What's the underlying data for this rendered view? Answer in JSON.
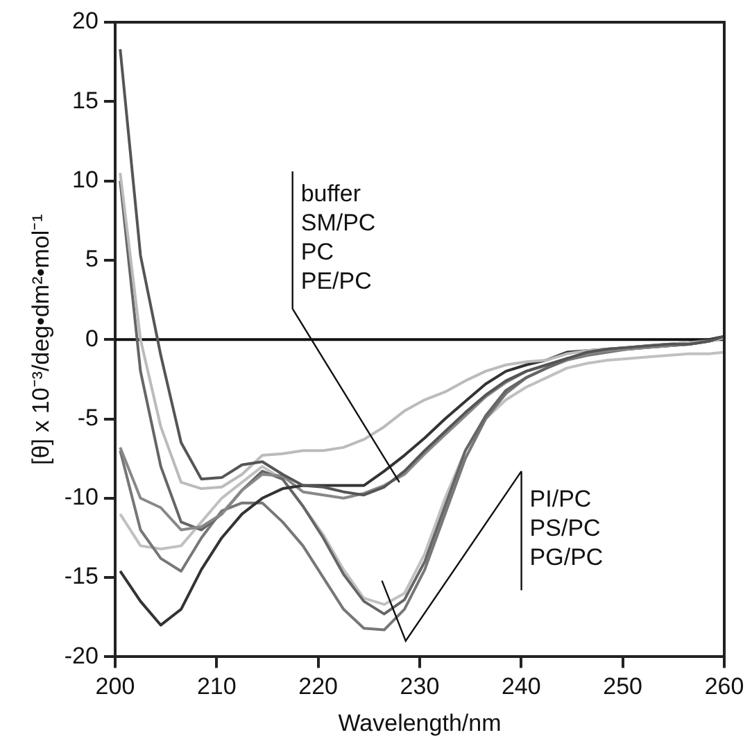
{
  "chart_data": {
    "type": "line",
    "xlabel": "Wavelength/nm",
    "ylabel": "[θ] x 10⁻³/deg•dm²•mol⁻¹",
    "x": [
      200.5,
      202.5,
      204.5,
      206.5,
      208.5,
      210.5,
      212.5,
      214.5,
      216.5,
      218.5,
      220.5,
      222.5,
      224.5,
      226.5,
      228.5,
      230.5,
      232.5,
      234.5,
      236.5,
      238.5,
      240.5,
      242.5,
      244.5,
      246.5,
      248.5,
      250.5,
      252.5,
      254.5,
      256.5,
      258.5,
      260
    ],
    "series": [
      {
        "color": "#555555",
        "values": [
          18.3,
          5.3,
          -1,
          -6.5,
          -8.8,
          -8.7,
          -7.9,
          -7.7,
          -8.5,
          -9.2,
          -9.3,
          -9.6,
          -9.8,
          -9.3,
          -8.3,
          -7,
          -5.8,
          -4.6,
          -3.5,
          -2.6,
          -2.0,
          -1.6,
          -1.2,
          -0.8,
          -0.6,
          -0.5,
          -0.4,
          -0.3,
          -0.3,
          -0.1,
          0.2
        ]
      },
      {
        "color": "#bbbbbb",
        "values": [
          10.5,
          0,
          -5.5,
          -9,
          -9.4,
          -9.3,
          -8.5,
          -7.3,
          -7.2,
          -7.0,
          -7.0,
          -6.8,
          -6.3,
          -5.5,
          -4.5,
          -3.8,
          -3.3,
          -2.6,
          -2.0,
          -1.6,
          -1.4,
          -1.3,
          -0.9,
          -0.7,
          -0.6,
          -0.5,
          -0.4,
          -0.3,
          -0.2,
          -0.1,
          0.1
        ]
      },
      {
        "color": "#333333",
        "values": [
          -14.6,
          -16.5,
          -18,
          -17,
          -14.5,
          -12.5,
          -11,
          -10,
          -9.4,
          -9.2,
          -9.2,
          -9.2,
          -9.2,
          -8.3,
          -7.3,
          -6.2,
          -5,
          -3.9,
          -2.8,
          -2.0,
          -1.6,
          -1.3,
          -0.8,
          -0.7,
          -0.6,
          -0.5,
          -0.4,
          -0.3,
          -0.2,
          0,
          0.2
        ]
      },
      {
        "color": "#888888",
        "values": [
          -6.8,
          -10,
          -10.6,
          -12,
          -11.8,
          -11,
          -9.5,
          -8.5,
          -8.6,
          -9.6,
          -9.8,
          -10,
          -9.7,
          -9.2,
          -8.5,
          -7.2,
          -6,
          -4.8,
          -3.6,
          -2.7,
          -2.0,
          -1.6,
          -1.2,
          -0.9,
          -0.7,
          -0.6,
          -0.5,
          -0.4,
          -0.3,
          -0.1,
          0.1
        ]
      },
      {
        "color": "#666666",
        "values": [
          10,
          -2,
          -8,
          -11.5,
          -12,
          -11,
          -9.5,
          -8.3,
          -8.8,
          -10.5,
          -12.5,
          -14.8,
          -16.5,
          -17.3,
          -16.4,
          -14,
          -10.5,
          -7,
          -4.8,
          -3.2,
          -2.4,
          -1.8,
          -1.2,
          -0.9,
          -0.7,
          -0.6,
          -0.5,
          -0.4,
          -0.3,
          -0.1,
          0.1
        ]
      },
      {
        "color": "#777777",
        "values": [
          -7,
          -12,
          -13.8,
          -14.6,
          -12.5,
          -10.8,
          -10.3,
          -10.3,
          -11.5,
          -13,
          -15,
          -17,
          -18.2,
          -18.3,
          -17,
          -14.5,
          -11,
          -7.5,
          -5,
          -3.4,
          -2.4,
          -1.8,
          -1.3,
          -1.0,
          -0.8,
          -0.6,
          -0.5,
          -0.4,
          -0.3,
          -0.1,
          0.1
        ]
      },
      {
        "color": "#c0c0c0",
        "values": [
          -11,
          -13,
          -13.2,
          -13,
          -11.5,
          -10,
          -9,
          -8,
          -8.8,
          -10.5,
          -12.3,
          -14.5,
          -16.3,
          -16.7,
          -16,
          -13.5,
          -10,
          -7,
          -5,
          -3.8,
          -3,
          -2.4,
          -1.8,
          -1.5,
          -1.3,
          -1.2,
          -1.1,
          -1.0,
          -0.9,
          -0.9,
          -0.8
        ]
      }
    ],
    "xlim": [
      200,
      260
    ],
    "xticks": [
      200,
      210,
      220,
      230,
      240,
      250,
      260
    ],
    "ylim": [
      -20,
      20
    ],
    "yticks": [
      -20,
      -15,
      -10,
      -5,
      0,
      5,
      10,
      15,
      20
    ],
    "ref_lines": [
      {
        "axis": "y",
        "value": 0,
        "color": "#111111"
      }
    ],
    "annotations": [
      {
        "text": "buffer\nSM/PC\nPC\nPE/PC",
        "x": 228,
        "y": -9
      },
      "PI/PC\nPS/PC\nPG/PC"
    ],
    "grid": false,
    "legend": false,
    "marker": "none",
    "line_style": "solid"
  }
}
